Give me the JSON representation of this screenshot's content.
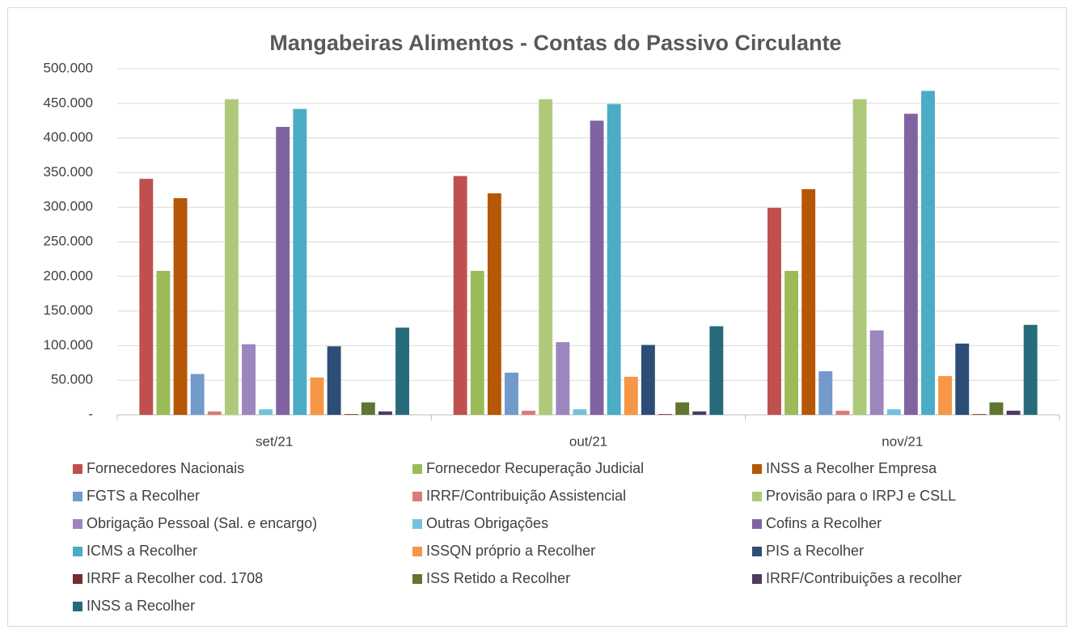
{
  "chart_data": {
    "type": "bar",
    "title": "Mangabeiras Alimentos - Contas do Passivo Circulante",
    "categories": [
      "set/21",
      "out/21",
      "nov/21"
    ],
    "ylim": [
      0,
      500000
    ],
    "yticks": [
      {
        "value": 0,
        "label": "-"
      },
      {
        "value": 50000,
        "label": "50.000"
      },
      {
        "value": 100000,
        "label": "100.000"
      },
      {
        "value": 150000,
        "label": "150.000"
      },
      {
        "value": 200000,
        "label": "200.000"
      },
      {
        "value": 250000,
        "label": "250.000"
      },
      {
        "value": 300000,
        "label": "300.000"
      },
      {
        "value": 350000,
        "label": "350.000"
      },
      {
        "value": 400000,
        "label": "400.000"
      },
      {
        "value": 450000,
        "label": "450.000"
      },
      {
        "value": 500000,
        "label": "500.000"
      }
    ],
    "grid": true,
    "legend": "bottom",
    "series": [
      {
        "name": "Fornecedores Nacionais",
        "color": "#c0504d",
        "values": [
          341000,
          345000,
          299000
        ]
      },
      {
        "name": "Fornecedor Recuperação Judicial",
        "color": "#9bbb59",
        "values": [
          208000,
          208000,
          208000
        ]
      },
      {
        "name": "INSS a Recolher Empresa",
        "color": "#b65708",
        "values": [
          313000,
          320000,
          326000
        ]
      },
      {
        "name": "FGTS a Recolher",
        "color": "#729aca",
        "values": [
          59000,
          61000,
          63000
        ]
      },
      {
        "name": "IRRF/Contribuição Assistencial",
        "color": "#da7c77",
        "values": [
          5000,
          6000,
          6000
        ]
      },
      {
        "name": "Provisão para o IRPJ e CSLL",
        "color": "#afc97a",
        "values": [
          456000,
          456000,
          456000
        ]
      },
      {
        "name": "Obrigação Pessoal (Sal. e encargo)",
        "color": "#9c86bd",
        "values": [
          102000,
          105000,
          122000
        ]
      },
      {
        "name": "Outras Obrigações",
        "color": "#71c3d9",
        "values": [
          8000,
          8000,
          8000
        ]
      },
      {
        "name": "Cofins a Recolher",
        "color": "#8064a2",
        "values": [
          416000,
          425000,
          435000
        ]
      },
      {
        "name": "ICMS a Recolher",
        "color": "#4bacc6",
        "values": [
          442000,
          449000,
          468000
        ]
      },
      {
        "name": "ISSQN próprio a Recolher",
        "color": "#f79646",
        "values": [
          54000,
          55000,
          56000
        ]
      },
      {
        "name": "PIS a Recolher",
        "color": "#2c4d75",
        "values": [
          99000,
          101000,
          103000
        ]
      },
      {
        "name": "IRRF a Recolher cod. 1708",
        "color": "#772c2a",
        "values": [
          1000,
          1000,
          1000
        ]
      },
      {
        "name": "ISS Retido a Recolher",
        "color": "#5f7530",
        "values": [
          18000,
          18000,
          18000
        ]
      },
      {
        "name": "IRRF/Contribuições a recolher",
        "color": "#4d3b62",
        "values": [
          5000,
          5000,
          6000
        ]
      },
      {
        "name": "INSS a Recolher",
        "color": "#276a7c",
        "values": [
          126000,
          128000,
          130000
        ]
      }
    ]
  }
}
